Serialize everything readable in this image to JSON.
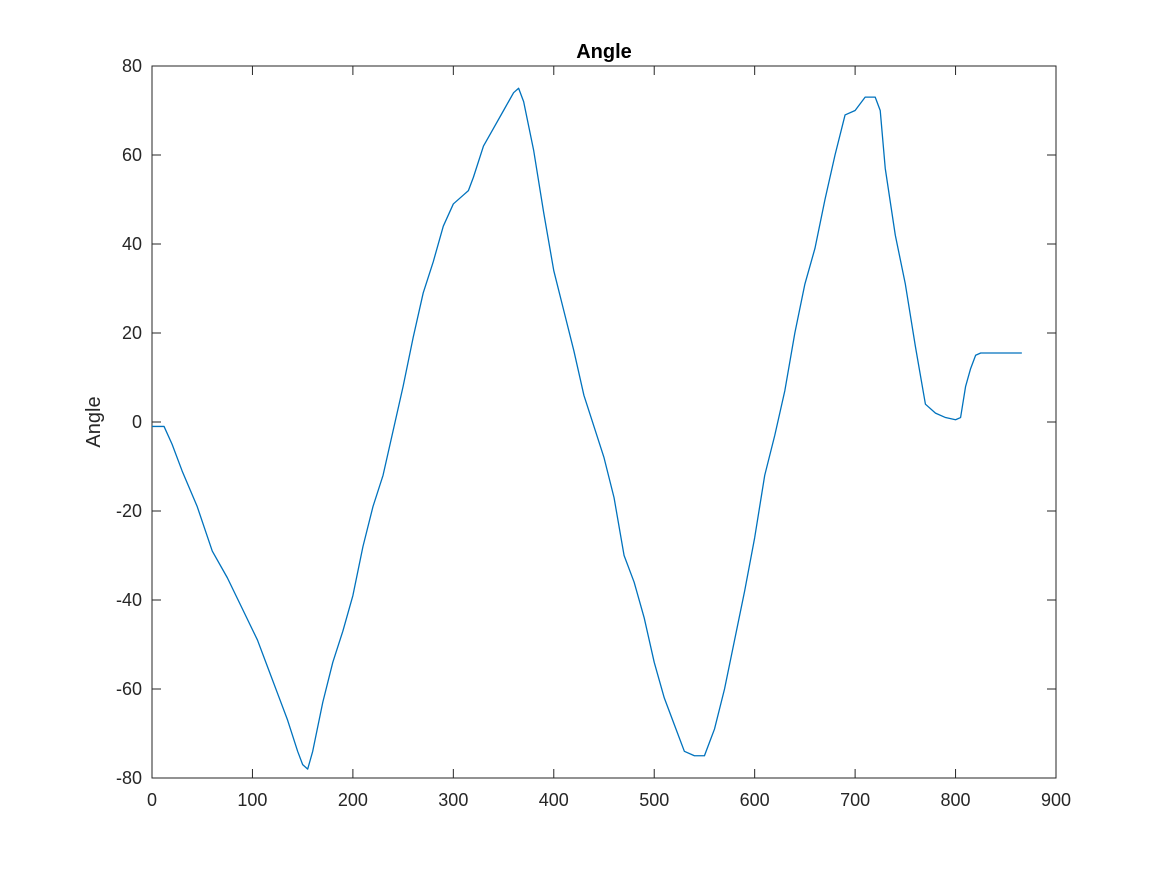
{
  "chart_data": {
    "type": "line",
    "title": "Angle",
    "xlabel": "",
    "ylabel": "Angle",
    "xlim": [
      0,
      900
    ],
    "ylim": [
      -80,
      80
    ],
    "xticks": [
      0,
      100,
      200,
      300,
      400,
      500,
      600,
      700,
      800,
      900
    ],
    "yticks": [
      -80,
      -60,
      -40,
      -20,
      0,
      20,
      40,
      60,
      80
    ],
    "grid": false,
    "line_color": "#0072BD",
    "series": [
      {
        "x": [
          0,
          12,
          20,
          30,
          45,
          60,
          75,
          90,
          105,
          115,
          125,
          135,
          145,
          150,
          155,
          160,
          170,
          180,
          190,
          200,
          210,
          220,
          230,
          240,
          250,
          260,
          270,
          280,
          290,
          300,
          310,
          315,
          320,
          330,
          340,
          350,
          360,
          365,
          370,
          380,
          390,
          400,
          410,
          420,
          430,
          440,
          450,
          460,
          470,
          480,
          490,
          500,
          510,
          520,
          530,
          540,
          550,
          555,
          560,
          570,
          580,
          590,
          600,
          610,
          620,
          630,
          640,
          650,
          660,
          670,
          680,
          690,
          700,
          710,
          720,
          725,
          730,
          740,
          750,
          760,
          770,
          780,
          790,
          800,
          805,
          810,
          815,
          820,
          825,
          840,
          866
        ],
        "y": [
          -1,
          -1,
          -5,
          -11,
          -19,
          -29,
          -35,
          -42,
          -49,
          -55,
          -61,
          -67,
          -74,
          -77,
          -78,
          -74,
          -63,
          -54,
          -47,
          -39,
          -28,
          -19,
          -12,
          -2,
          8,
          19,
          29,
          36,
          44,
          49,
          51,
          52,
          55,
          62,
          66,
          70,
          74,
          75,
          72,
          61,
          47,
          34,
          25,
          16,
          6,
          -1,
          -8,
          -17,
          -30,
          -36,
          -44,
          -54,
          -62,
          -68,
          -74,
          -75,
          -75,
          -72,
          -69,
          -60,
          -49,
          -38,
          -26,
          -12,
          -3,
          7,
          20,
          31,
          39,
          50,
          60,
          69,
          70,
          73,
          73,
          70,
          57,
          42,
          31,
          17,
          4,
          2,
          1,
          0.5,
          1,
          8,
          12,
          15,
          15.5,
          15.5,
          15.5
        ]
      }
    ]
  }
}
